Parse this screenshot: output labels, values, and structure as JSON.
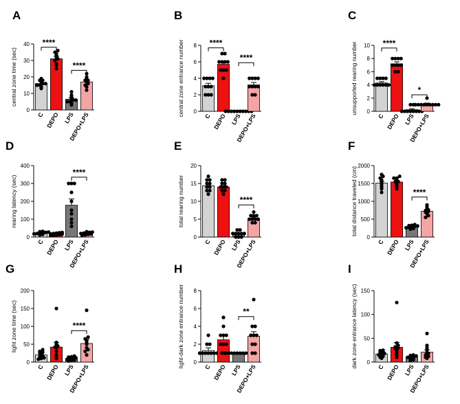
{
  "figure": {
    "background": "#ffffff"
  },
  "colors": {
    "C": "#d3d3d3",
    "DEPO": "#ee1111",
    "LPS": "#777777",
    "DEPO+LPS": "#f4a4a4",
    "dot": "#000000",
    "axis": "#000000"
  },
  "chart_data": [
    {
      "type": "bar",
      "panel": "A",
      "ylabel": "central zone time (sec)",
      "ylim": [
        0,
        40
      ],
      "yticks": [
        0,
        10,
        20,
        30,
        40
      ],
      "categories": [
        "C",
        "DEPO",
        "LPS",
        "DEPO+LPS"
      ],
      "values": [
        16,
        31,
        6.5,
        17
      ],
      "errors": [
        1.2,
        1.5,
        0.8,
        1.2
      ],
      "points": [
        [
          13,
          14,
          15,
          15,
          16,
          16,
          17,
          18,
          18,
          19
        ],
        [
          25,
          27,
          28,
          30,
          31,
          32,
          33,
          34,
          35,
          36
        ],
        [
          3,
          4,
          5,
          5,
          6,
          6,
          7,
          8,
          9,
          11
        ],
        [
          12,
          14,
          15,
          16,
          17,
          18,
          18,
          19,
          20,
          22
        ]
      ],
      "significance": [
        {
          "groups": [
            0,
            1
          ],
          "label": "****",
          "y": 38
        },
        {
          "groups": [
            2,
            3
          ],
          "label": "****",
          "y": 24
        }
      ]
    },
    {
      "type": "bar",
      "panel": "B",
      "ylabel": "central zone entrance number",
      "ylim": [
        0,
        8
      ],
      "yticks": [
        0,
        2,
        4,
        6,
        8
      ],
      "categories": [
        "C",
        "DEPO",
        "LPS",
        "DEPO+LPS"
      ],
      "values": [
        3.1,
        5.7,
        0.05,
        3.2
      ],
      "errors": [
        0.3,
        0.3,
        0.03,
        0.3
      ],
      "points": [
        [
          2,
          2,
          2,
          3,
          3,
          3,
          4,
          4,
          4,
          4
        ],
        [
          4,
          5,
          5,
          5,
          6,
          6,
          6,
          6,
          7,
          7
        ],
        [
          0,
          0,
          0,
          0,
          0,
          0,
          0,
          0,
          0,
          0
        ],
        [
          2,
          2,
          3,
          3,
          3,
          3,
          4,
          4,
          4,
          4
        ]
      ],
      "significance": [
        {
          "groups": [
            0,
            1
          ],
          "label": "****",
          "y": 7.7
        },
        {
          "groups": [
            2,
            3
          ],
          "label": "****",
          "y": 5.9
        }
      ]
    },
    {
      "type": "bar",
      "panel": "C",
      "ylabel": "unsupported rearing number",
      "ylim": [
        0,
        10
      ],
      "yticks": [
        0,
        2,
        4,
        6,
        8,
        10
      ],
      "categories": [
        "C",
        "DEPO",
        "LPS",
        "DEPO+LPS"
      ],
      "values": [
        4.3,
        7.2,
        0.25,
        1.1
      ],
      "errors": [
        0.2,
        0.3,
        0.15,
        0.15
      ],
      "points": [
        [
          4,
          4,
          4,
          4,
          4,
          4,
          5,
          5,
          5,
          5
        ],
        [
          6,
          6,
          7,
          7,
          7,
          7,
          8,
          8,
          8,
          8
        ],
        [
          0,
          0,
          0,
          0,
          0,
          0,
          0,
          0,
          1,
          1
        ],
        [
          1,
          1,
          1,
          1,
          1,
          1,
          1,
          1,
          1,
          2
        ]
      ],
      "significance": [
        {
          "groups": [
            0,
            1
          ],
          "label": "****",
          "y": 9.6
        },
        {
          "groups": [
            2,
            3
          ],
          "label": "*",
          "y": 2.5
        }
      ]
    },
    {
      "type": "bar",
      "panel": "D",
      "ylabel": "rearing latency (sec)",
      "ylim": [
        0,
        400
      ],
      "yticks": [
        0,
        100,
        200,
        300,
        400
      ],
      "categories": [
        "C",
        "DEPO",
        "LPS",
        "DEPO+LPS"
      ],
      "values": [
        22,
        16,
        178,
        20
      ],
      "errors": [
        3,
        3,
        35,
        3
      ],
      "points": [
        [
          12,
          15,
          18,
          20,
          22,
          24,
          26,
          28,
          30,
          32
        ],
        [
          8,
          10,
          12,
          14,
          16,
          18,
          20,
          22,
          24,
          26
        ],
        [
          60,
          80,
          100,
          130,
          150,
          200,
          250,
          300,
          300,
          300
        ],
        [
          10,
          12,
          15,
          17,
          20,
          22,
          24,
          26,
          28,
          30
        ]
      ],
      "significance": [
        {
          "groups": [
            2,
            3
          ],
          "label": "****",
          "y": 335
        }
      ]
    },
    {
      "type": "bar",
      "panel": "E",
      "ylabel": "total rearing number",
      "ylim": [
        0,
        20
      ],
      "yticks": [
        0,
        5,
        10,
        15,
        20
      ],
      "categories": [
        "C",
        "DEPO",
        "LPS",
        "DEPO+LPS"
      ],
      "values": [
        14.4,
        14,
        0.9,
        5.2
      ],
      "errors": [
        0.5,
        0.4,
        0.2,
        0.4
      ],
      "points": [
        [
          12,
          13,
          13,
          14,
          14,
          15,
          15,
          16,
          16,
          17
        ],
        [
          12,
          13,
          13,
          14,
          14,
          14,
          15,
          15,
          16,
          16
        ],
        [
          0,
          0,
          0,
          1,
          1,
          1,
          1,
          1,
          2,
          2
        ],
        [
          4,
          4,
          5,
          5,
          5,
          5,
          6,
          6,
          6,
          7
        ]
      ],
      "significance": [
        {
          "groups": [
            2,
            3
          ],
          "label": "****",
          "y": 9
        }
      ]
    },
    {
      "type": "bar",
      "panel": "F",
      "ylabel": "total distance traveled (cm)",
      "ylim": [
        0,
        2000
      ],
      "yticks": [
        0,
        500,
        1000,
        1500,
        2000
      ],
      "categories": [
        "C",
        "DEPO",
        "LPS",
        "DEPO+LPS"
      ],
      "values": [
        1510,
        1540,
        290,
        720
      ],
      "errors": [
        50,
        45,
        20,
        40
      ],
      "points": [
        [
          1250,
          1350,
          1400,
          1450,
          1500,
          1550,
          1600,
          1650,
          1700,
          1750
        ],
        [
          1350,
          1400,
          1450,
          1500,
          1550,
          1550,
          1600,
          1650,
          1650,
          1700
        ],
        [
          220,
          240,
          260,
          280,
          290,
          300,
          310,
          320,
          330,
          350
        ],
        [
          550,
          600,
          650,
          700,
          720,
          740,
          760,
          800,
          850,
          900
        ]
      ],
      "significance": [
        {
          "groups": [
            2,
            3
          ],
          "label": "****",
          "y": 1120
        }
      ]
    },
    {
      "type": "bar",
      "panel": "G",
      "ylabel": "light zone time (sec)",
      "ylim": [
        0,
        200
      ],
      "yticks": [
        0,
        50,
        100,
        150,
        200
      ],
      "categories": [
        "C",
        "DEPO",
        "LPS",
        "DEPO+LPS"
      ],
      "values": [
        20,
        42,
        10,
        52
      ],
      "errors": [
        4,
        13,
        2,
        11
      ],
      "points": [
        [
          8,
          10,
          12,
          15,
          18,
          20,
          25,
          28,
          30,
          35
        ],
        [
          10,
          15,
          20,
          30,
          40,
          42,
          45,
          50,
          55,
          150
        ],
        [
          3,
          5,
          6,
          8,
          10,
          10,
          12,
          14,
          15,
          17
        ],
        [
          20,
          30,
          35,
          40,
          50,
          55,
          60,
          65,
          70,
          145
        ]
      ],
      "significance": [
        {
          "groups": [
            2,
            3
          ],
          "label": "****",
          "y": 88
        }
      ]
    },
    {
      "type": "bar",
      "panel": "H",
      "ylabel": "light-dark zone entrance number",
      "ylim": [
        0,
        8
      ],
      "yticks": [
        0,
        2,
        4,
        6,
        8
      ],
      "categories": [
        "C",
        "DEPO",
        "LPS",
        "DEPO+LPS"
      ],
      "values": [
        1.3,
        2.5,
        1.0,
        2.9
      ],
      "errors": [
        0.3,
        0.5,
        0.02,
        0.5
      ],
      "points": [
        [
          1,
          1,
          1,
          1,
          1,
          1,
          1,
          2,
          2,
          3
        ],
        [
          1,
          1,
          2,
          2,
          2,
          3,
          3,
          3,
          4,
          5
        ],
        [
          1,
          1,
          1,
          1,
          1,
          1,
          1,
          1,
          1,
          1
        ],
        [
          1,
          1,
          2,
          2,
          3,
          3,
          3,
          4,
          4,
          7
        ]
      ],
      "significance": [
        {
          "groups": [
            2,
            3
          ],
          "label": "**",
          "y": 5.1
        }
      ]
    },
    {
      "type": "bar",
      "panel": "I",
      "ylabel": "dark zone entrance latency (sec)",
      "ylim": [
        0,
        150
      ],
      "yticks": [
        0,
        50,
        100,
        150
      ],
      "categories": [
        "C",
        "DEPO",
        "LPS",
        "DEPO+LPS"
      ],
      "values": [
        17,
        31,
        10,
        21
      ],
      "errors": [
        3,
        10,
        2,
        5
      ],
      "points": [
        [
          8,
          10,
          12,
          15,
          17,
          18,
          20,
          22,
          24,
          25
        ],
        [
          10,
          15,
          20,
          25,
          28,
          30,
          32,
          35,
          40,
          125
        ],
        [
          3,
          5,
          6,
          8,
          10,
          10,
          12,
          13,
          14,
          15
        ],
        [
          8,
          10,
          12,
          15,
          18,
          20,
          25,
          30,
          35,
          60
        ]
      ],
      "significance": []
    }
  ]
}
